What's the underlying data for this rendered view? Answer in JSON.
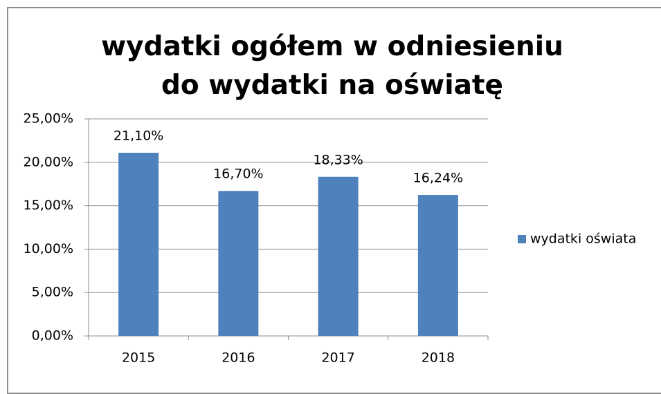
{
  "chart_data": {
    "type": "bar",
    "title": "wydatki ogółem w odniesieniu do wydatki na oświatę",
    "categories": [
      "2015",
      "2016",
      "2017",
      "2018"
    ],
    "series": [
      {
        "name": "wydatki oświata",
        "color": "#4f81bd",
        "values": [
          21.1,
          16.7,
          18.33,
          16.24
        ],
        "value_labels": [
          "21,10%",
          "16,70%",
          "18,33%",
          "16,24%"
        ]
      }
    ],
    "ylim": [
      0,
      25
    ],
    "yticks": [
      {
        "value": 0,
        "label": "0,00%"
      },
      {
        "value": 5,
        "label": "5,00%"
      },
      {
        "value": 10,
        "label": "10,00%"
      },
      {
        "value": 15,
        "label": "15,00%"
      },
      {
        "value": 20,
        "label": "20,00%"
      },
      {
        "value": 25,
        "label": "25,00%"
      }
    ],
    "grid": true,
    "legend": "right"
  }
}
